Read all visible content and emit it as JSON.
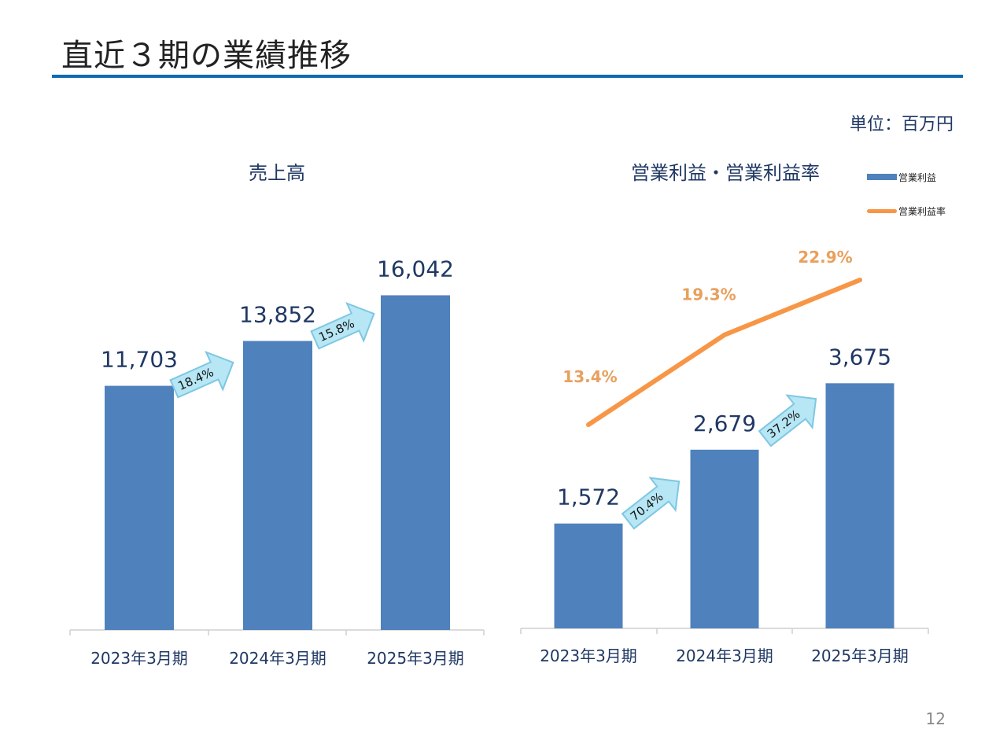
{
  "page": {
    "title": "直近３期の業績推移",
    "unit": "単位：百万円",
    "page_number": "12"
  },
  "legend": {
    "bar": "営業利益",
    "line": "営業利益率"
  },
  "colors": {
    "bar": "#4f81bd",
    "line": "#f79646",
    "rule": "#0f6ab4",
    "arrow_fill": "#b7e6f4",
    "arrow_stroke": "#7ec7e3"
  },
  "chart_data": [
    {
      "type": "bar",
      "title": "売上高",
      "categories": [
        "2023年3月期",
        "2024年3月期",
        "2025年3月期"
      ],
      "values": [
        11703,
        13852,
        16042
      ],
      "value_labels": [
        "11,703",
        "13,852",
        "16,042"
      ],
      "growth_labels": [
        "18.4%",
        "15.8%"
      ],
      "ylim": [
        0,
        19000
      ]
    },
    {
      "type": "bar",
      "title": "営業利益・営業利益率",
      "categories": [
        "2023年3月期",
        "2024年3月期",
        "2025年3月期"
      ],
      "series": [
        {
          "name": "営業利益",
          "type": "bar",
          "values": [
            1572,
            2679,
            3675
          ],
          "labels": [
            "1,572",
            "2,679",
            "3,675"
          ]
        },
        {
          "name": "営業利益率",
          "type": "line",
          "values": [
            13.4,
            19.3,
            22.9
          ],
          "labels": [
            "13.4%",
            "19.3%",
            "22.9%"
          ]
        }
      ],
      "growth_labels": [
        "70.4%",
        "37.2%"
      ],
      "ylim_bar": [
        0,
        5200
      ],
      "ylim_line": [
        0,
        30
      ]
    }
  ]
}
